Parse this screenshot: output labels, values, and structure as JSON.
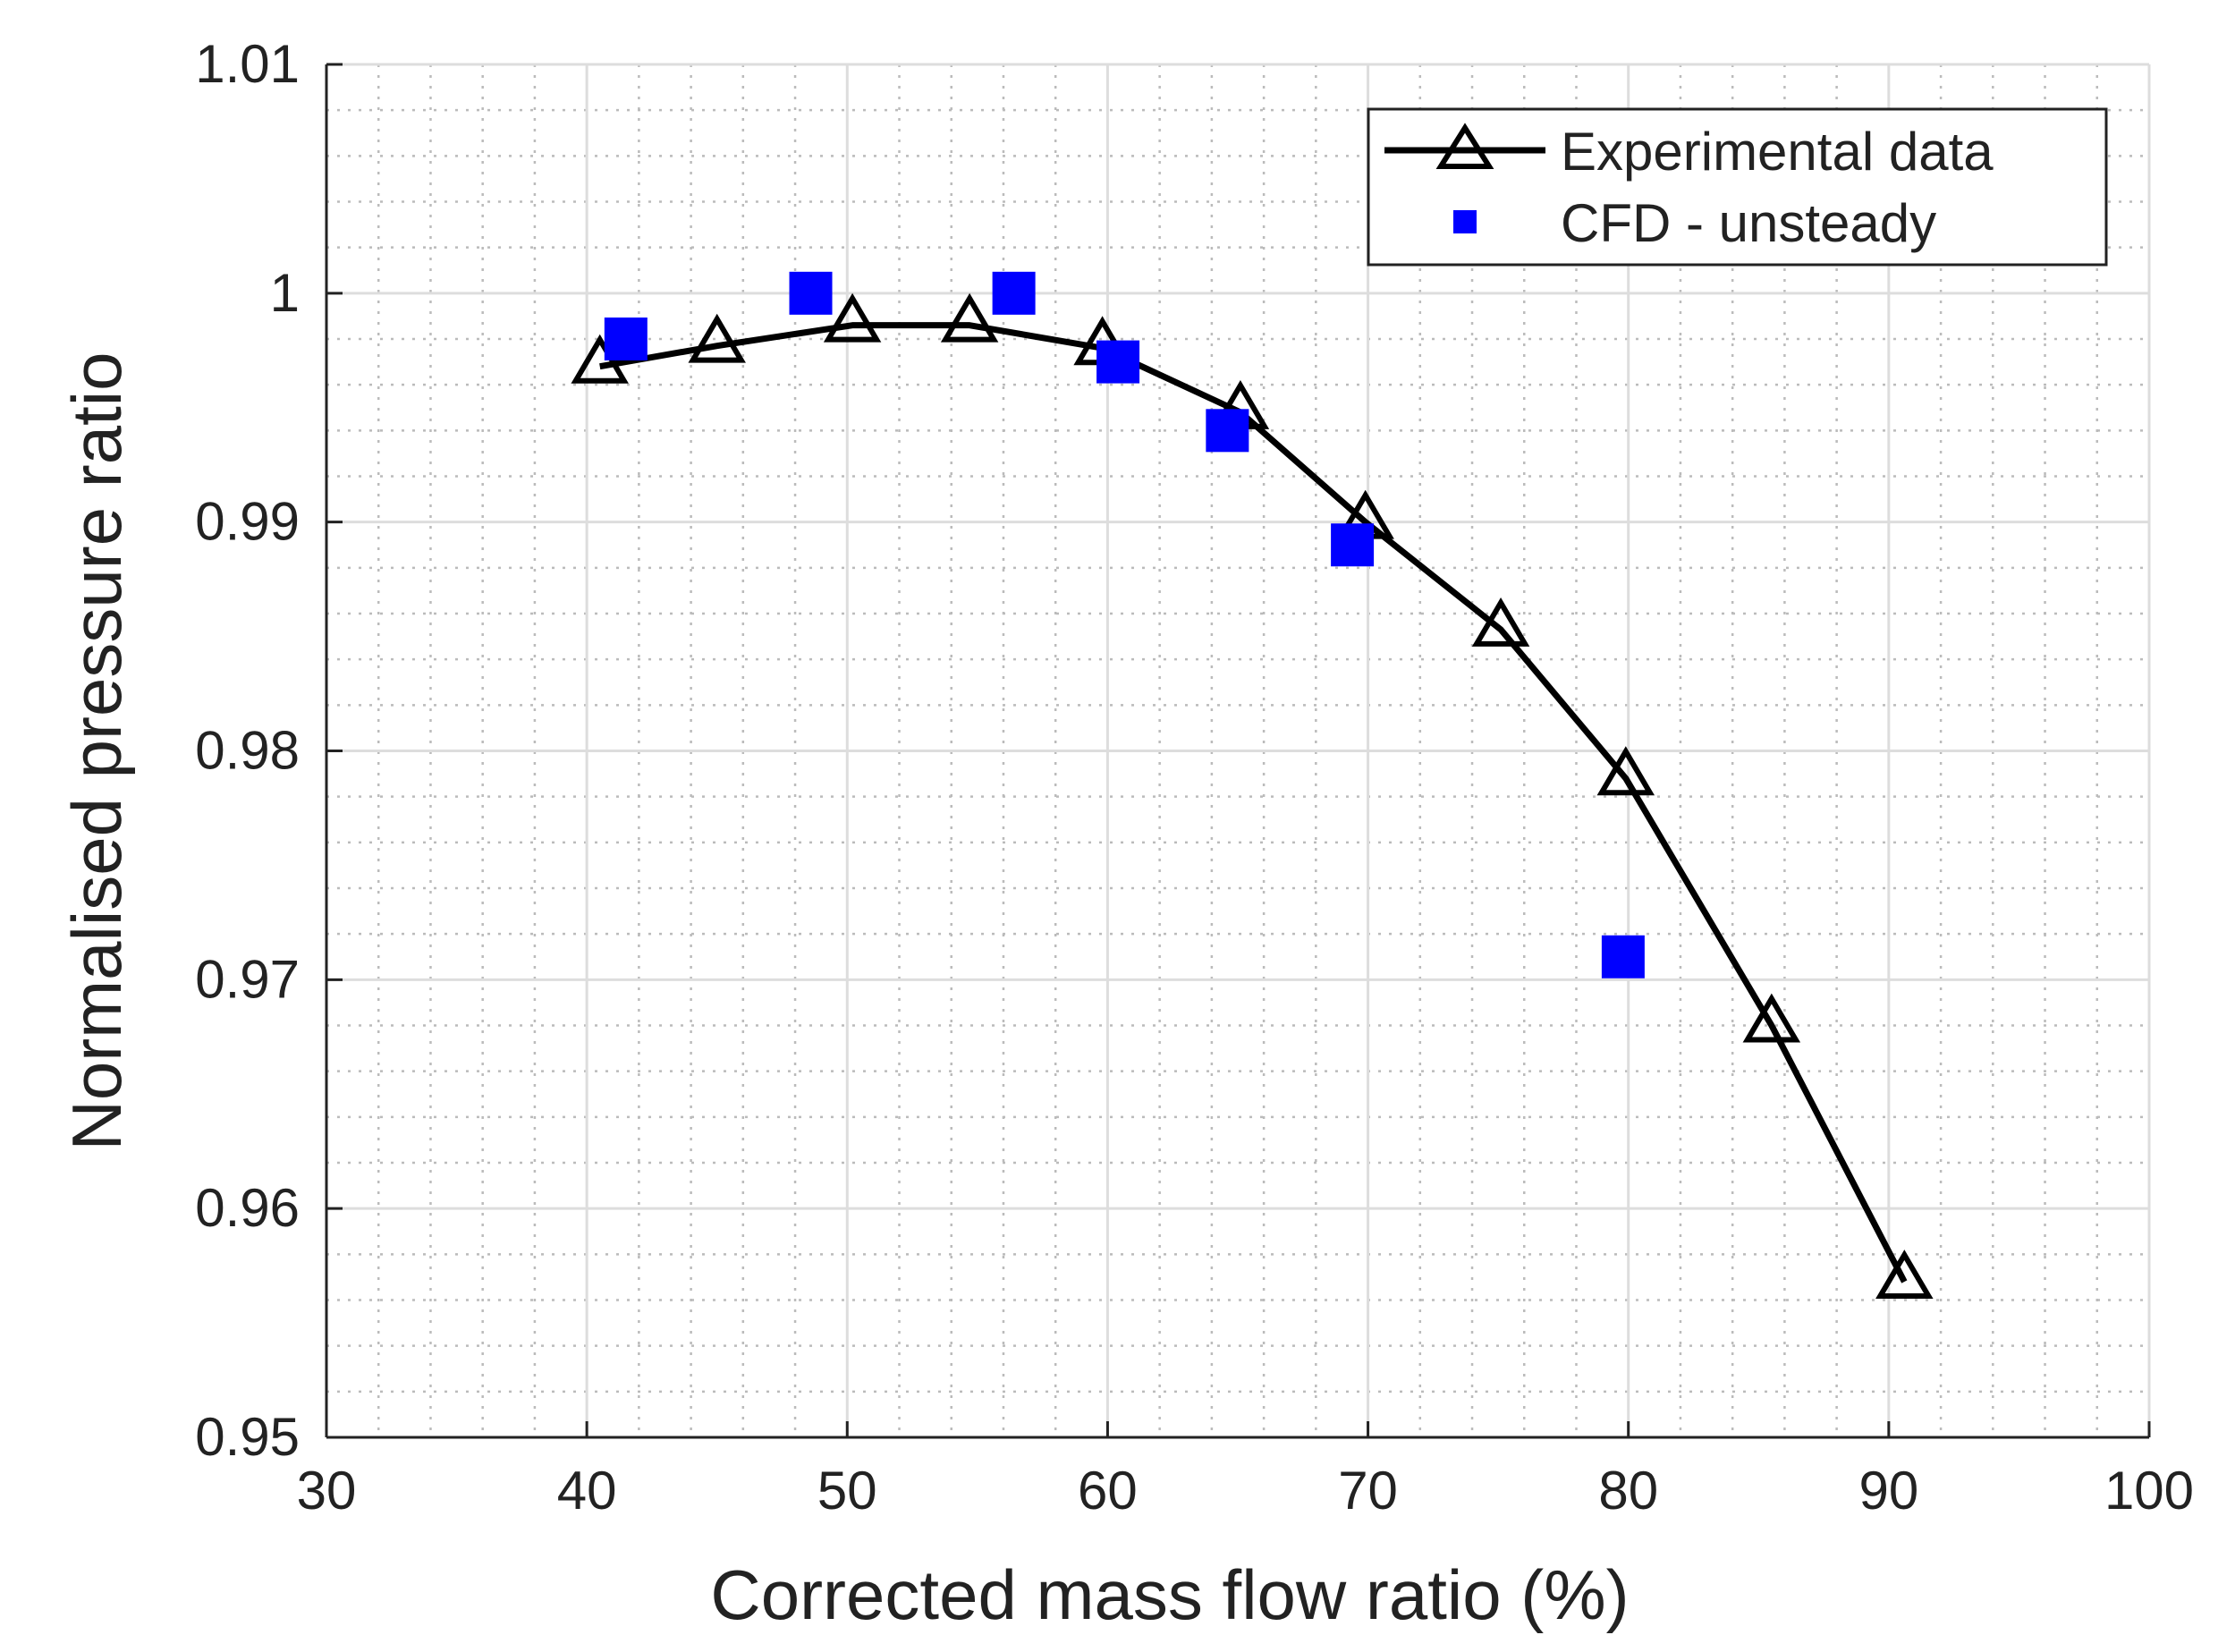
{
  "chart_data": {
    "type": "line",
    "title": "",
    "xlabel": "Corrected mass flow ratio (%)",
    "ylabel": "Normalised pressure ratio",
    "xlim": [
      30,
      100
    ],
    "ylim": [
      0.95,
      1.01
    ],
    "xticks": [
      30,
      40,
      50,
      60,
      70,
      80,
      90,
      100
    ],
    "xtick_labels": [
      "30",
      "40",
      "50",
      "60",
      "70",
      "80",
      "90",
      "100"
    ],
    "yticks": [
      0.95,
      0.96,
      0.97,
      0.98,
      0.99,
      1.0,
      1.01
    ],
    "ytick_labels": [
      "0.95",
      "0.96",
      "0.97",
      "0.98",
      "0.99",
      "1",
      "1.01"
    ],
    "grid": true,
    "minor_grid": true,
    "legend_position": "top-right",
    "series": [
      {
        "name": "Experimental data",
        "style": "line-triangle",
        "color": "#000000",
        "x": [
          40.5,
          45.0,
          50.2,
          54.7,
          59.8,
          65.1,
          69.9,
          75.1,
          79.9,
          85.5,
          90.6
        ],
        "y": [
          0.9968,
          0.9977,
          0.9986,
          0.9986,
          0.9976,
          0.9948,
          0.99,
          0.9853,
          0.9788,
          0.968,
          0.9568
        ]
      },
      {
        "name": "CFD - unsteady",
        "style": "square",
        "color": "#0000ff",
        "x": [
          41.5,
          48.6,
          56.4,
          60.4,
          64.6,
          69.4,
          79.8
        ],
        "y": [
          0.998,
          1.0,
          1.0,
          0.997,
          0.994,
          0.989,
          0.971
        ]
      }
    ]
  }
}
